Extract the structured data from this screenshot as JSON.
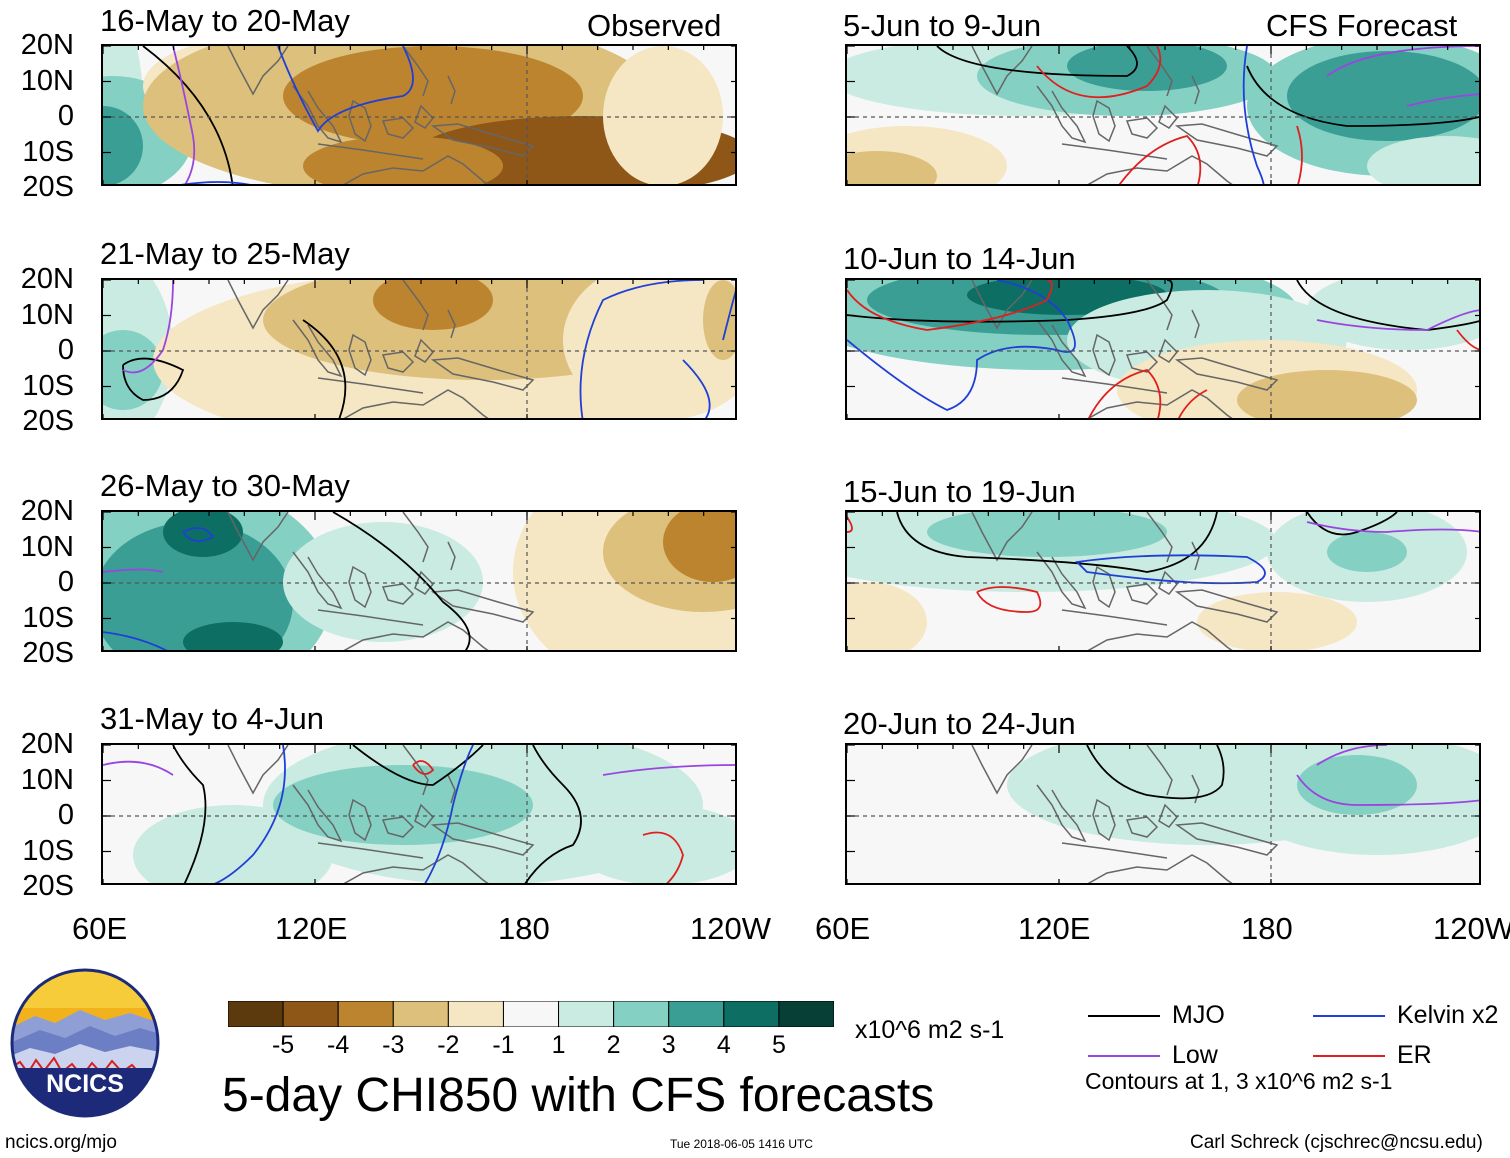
{
  "chart_data": {
    "type": "heatmap",
    "title": "5-day CHI850 with CFS forecasts",
    "units": "x10^6 m2 s-1",
    "x_ticks": [
      "60E",
      "120E",
      "180",
      "120W"
    ],
    "y_ticks": [
      "20N",
      "10N",
      "0",
      "10S",
      "20S"
    ],
    "lon_range": [
      60,
      240
    ],
    "lat_range": [
      -20,
      20
    ],
    "colorbar": {
      "levels": [
        "-5",
        "-4",
        "-3",
        "-2",
        "-1",
        "1",
        "2",
        "3",
        "4",
        "5"
      ],
      "colors": [
        "#5c3a0e",
        "#8e5617",
        "#bc842e",
        "#dcc07c",
        "#f5e6c4",
        "#f7f7f7",
        "#c9ebe1",
        "#84d0c2",
        "#3a9e94",
        "#0d6e63",
        "#073f37"
      ]
    },
    "columns": [
      {
        "label": "Observed",
        "panels": [
          {
            "title": "16-May to 20-May",
            "anomaly": -3
          },
          {
            "title": "21-May to 25-May",
            "anomaly": -2
          },
          {
            "title": "26-May to 30-May",
            "anomaly": 2
          },
          {
            "title": "31-May to 4-Jun",
            "anomaly": 1
          }
        ]
      },
      {
        "label": "CFS Forecast",
        "panels": [
          {
            "title": "5-Jun to 9-Jun",
            "anomaly": 2
          },
          {
            "title": "10-Jun to 14-Jun",
            "anomaly": 2
          },
          {
            "title": "15-Jun to 19-Jun",
            "anomaly": 1
          },
          {
            "title": "20-Jun to 24-Jun",
            "anomaly": 1
          }
        ]
      }
    ],
    "contour_legend": [
      {
        "name": "MJO",
        "color": "#000000"
      },
      {
        "name": "Kelvin x2",
        "color": "#1f3fd6"
      },
      {
        "name": "Low",
        "color": "#9b45e0"
      },
      {
        "name": "ER",
        "color": "#e01f1f"
      }
    ],
    "contour_note": "Contours at 1, 3 x10^6 m2 s-1"
  },
  "footer": {
    "logo_text": "NCICS",
    "website": "ncics.org/mjo",
    "timestamp": "Tue 2018-06-05 1416 UTC",
    "author": "Carl Schreck (cjschrec@ncsu.edu)"
  }
}
